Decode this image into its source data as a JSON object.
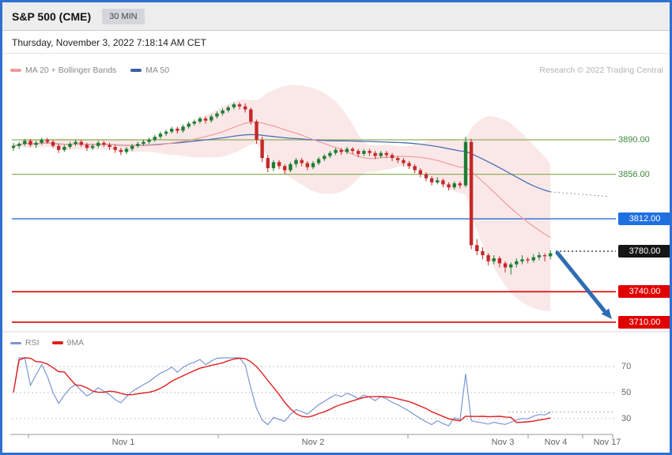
{
  "colors": {
    "frame_border": "#2e6fd0",
    "titlebar_bg": "#ededed",
    "timeframe_badge_bg": "#d3d7dc",
    "green_level": "#8faf5a",
    "green_text": "#3c8a3c",
    "blue_level": "#3a7bd5",
    "blue_badge": "#1e6fe0",
    "black_badge": "#161616",
    "red_level": "#e00000",
    "candle_up": "#1e7d32",
    "candle_down": "#c62828",
    "ma20": "#f29b9b",
    "ma50": "#4a6fb5",
    "boll_fill": "#f7d9d9",
    "rsi_line": "#7b96d4",
    "rsi_ma": "#e02020",
    "arrow": "#2e6db4",
    "credit_text": "#b3b3b3"
  },
  "header": {
    "title": "S&P 500 (CME)",
    "timeframe": "30 MIN"
  },
  "datetime_line": "Thursday, November 3, 2022 7:18:14 AM CET",
  "credit": "Research © 2022 Trading Central",
  "legend": {
    "ma20": "MA 20 + Bollinger Bands",
    "ma50": "MA 50"
  },
  "rsi_legend": {
    "rsi": "RSI",
    "ma9": "9MA"
  },
  "price_labels": [
    "3890.00",
    "3856.00",
    "3812.00",
    "3780.00",
    "3740.00",
    "3710.00"
  ],
  "x_labels": [
    "Nov 1",
    "Nov 2",
    "Nov 3",
    "Nov 4",
    "Nov 17"
  ],
  "rsi_ticks": [
    "70",
    "50",
    "30"
  ],
  "chart_data": {
    "type": "candlestick",
    "symbol": "S&P 500 (CME)",
    "interval": "30 MIN",
    "title": "S&P 500 (CME) 30 MIN intraday chart with MA20 + Bollinger Bands, MA50, RSI and 9MA, pivot/support/resistance levels",
    "ylim": [
      3700,
      3940
    ],
    "x_categories": [
      "Nov 1",
      "Nov 2",
      "Nov 3",
      "Nov 4",
      "Nov 17"
    ],
    "levels": [
      {
        "price": 3890,
        "style": "green",
        "label": "3890.00"
      },
      {
        "price": 3856,
        "style": "green",
        "label": "3856.00"
      },
      {
        "price": 3812,
        "style": "blue",
        "label": "3812.00"
      },
      {
        "price": 3780,
        "style": "black-dotted",
        "label": "3780.00"
      },
      {
        "price": 3740,
        "style": "red",
        "label": "3740.00"
      },
      {
        "price": 3710,
        "style": "red",
        "label": "3710.00"
      }
    ],
    "arrow_projection": {
      "from_price": 3780,
      "to_price": 3710,
      "direction": "down"
    },
    "rsi_gridlines": [
      70,
      50,
      30
    ],
    "indicators": [
      "MA 20 + Bollinger Bands",
      "MA 50",
      "RSI",
      "9MA"
    ],
    "candles": [
      [
        3882,
        3887,
        3879,
        3884
      ],
      [
        3884,
        3888,
        3881,
        3886
      ],
      [
        3886,
        3891,
        3884,
        3889
      ],
      [
        3889,
        3891,
        3883,
        3885
      ],
      [
        3885,
        3889,
        3882,
        3887
      ],
      [
        3887,
        3892,
        3885,
        3890
      ],
      [
        3890,
        3892,
        3886,
        3888
      ],
      [
        3888,
        3890,
        3882,
        3884
      ],
      [
        3884,
        3886,
        3877,
        3880
      ],
      [
        3880,
        3885,
        3878,
        3883
      ],
      [
        3883,
        3888,
        3881,
        3886
      ],
      [
        3886,
        3890,
        3884,
        3888
      ],
      [
        3888,
        3890,
        3883,
        3885
      ],
      [
        3885,
        3887,
        3879,
        3882
      ],
      [
        3882,
        3886,
        3880,
        3884
      ],
      [
        3884,
        3889,
        3882,
        3887
      ],
      [
        3887,
        3889,
        3883,
        3885
      ],
      [
        3885,
        3887,
        3880,
        3883
      ],
      [
        3883,
        3885,
        3877,
        3880
      ],
      [
        3880,
        3882,
        3875,
        3878
      ],
      [
        3878,
        3883,
        3876,
        3881
      ],
      [
        3881,
        3886,
        3879,
        3884
      ],
      [
        3884,
        3888,
        3882,
        3886
      ],
      [
        3886,
        3890,
        3884,
        3888
      ],
      [
        3888,
        3892,
        3886,
        3890
      ],
      [
        3890,
        3895,
        3888,
        3893
      ],
      [
        3893,
        3898,
        3891,
        3896
      ],
      [
        3896,
        3900,
        3894,
        3898
      ],
      [
        3898,
        3903,
        3896,
        3901
      ],
      [
        3901,
        3903,
        3896,
        3899
      ],
      [
        3899,
        3905,
        3897,
        3903
      ],
      [
        3903,
        3908,
        3901,
        3906
      ],
      [
        3906,
        3910,
        3904,
        3908
      ],
      [
        3908,
        3913,
        3906,
        3911
      ],
      [
        3911,
        3913,
        3906,
        3909
      ],
      [
        3909,
        3915,
        3907,
        3913
      ],
      [
        3913,
        3918,
        3911,
        3916
      ],
      [
        3916,
        3921,
        3914,
        3919
      ],
      [
        3919,
        3924,
        3917,
        3922
      ],
      [
        3922,
        3927,
        3920,
        3925
      ],
      [
        3925,
        3927,
        3920,
        3923
      ],
      [
        3923,
        3926,
        3917,
        3920
      ],
      [
        3920,
        3922,
        3905,
        3908
      ],
      [
        3908,
        3910,
        3886,
        3890
      ],
      [
        3890,
        3893,
        3868,
        3872
      ],
      [
        3872,
        3875,
        3858,
        3862
      ],
      [
        3862,
        3870,
        3859,
        3868
      ],
      [
        3868,
        3870,
        3861,
        3864
      ],
      [
        3864,
        3866,
        3856,
        3860
      ],
      [
        3860,
        3868,
        3858,
        3866
      ],
      [
        3866,
        3872,
        3863,
        3870
      ],
      [
        3870,
        3872,
        3864,
        3867
      ],
      [
        3867,
        3869,
        3860,
        3863
      ],
      [
        3863,
        3869,
        3861,
        3867
      ],
      [
        3867,
        3873,
        3865,
        3871
      ],
      [
        3871,
        3876,
        3869,
        3874
      ],
      [
        3874,
        3879,
        3872,
        3877
      ],
      [
        3877,
        3882,
        3875,
        3880
      ],
      [
        3880,
        3882,
        3875,
        3878
      ],
      [
        3878,
        3883,
        3876,
        3881
      ],
      [
        3881,
        3883,
        3876,
        3879
      ],
      [
        3879,
        3881,
        3873,
        3876
      ],
      [
        3876,
        3881,
        3874,
        3879
      ],
      [
        3879,
        3881,
        3874,
        3877
      ],
      [
        3877,
        3879,
        3871,
        3874
      ],
      [
        3874,
        3879,
        3872,
        3877
      ],
      [
        3877,
        3879,
        3872,
        3875
      ],
      [
        3875,
        3877,
        3869,
        3872
      ],
      [
        3872,
        3874,
        3867,
        3870
      ],
      [
        3870,
        3872,
        3864,
        3867
      ],
      [
        3867,
        3869,
        3861,
        3864
      ],
      [
        3864,
        3866,
        3857,
        3860
      ],
      [
        3860,
        3862,
        3853,
        3856
      ],
      [
        3856,
        3858,
        3849,
        3852
      ],
      [
        3852,
        3854,
        3845,
        3848
      ],
      [
        3848,
        3853,
        3846,
        3850
      ],
      [
        3850,
        3852,
        3843,
        3846
      ],
      [
        3846,
        3848,
        3840,
        3843
      ],
      [
        3843,
        3849,
        3841,
        3847
      ],
      [
        3847,
        3849,
        3842,
        3845
      ],
      [
        3845,
        3893,
        3843,
        3888
      ],
      [
        3888,
        3891,
        3782,
        3786
      ],
      [
        3786,
        3792,
        3776,
        3780
      ],
      [
        3780,
        3784,
        3772,
        3776
      ],
      [
        3776,
        3778,
        3766,
        3770
      ],
      [
        3770,
        3776,
        3767,
        3773
      ],
      [
        3773,
        3775,
        3764,
        3768
      ],
      [
        3768,
        3770,
        3759,
        3764
      ],
      [
        3764,
        3769,
        3757,
        3767
      ],
      [
        3767,
        3773,
        3764,
        3770
      ],
      [
        3770,
        3776,
        3767,
        3772
      ],
      [
        3772,
        3774,
        3768,
        3771
      ],
      [
        3771,
        3777,
        3769,
        3774
      ],
      [
        3774,
        3779,
        3771,
        3776
      ],
      [
        3776,
        3778,
        3770,
        3775
      ],
      [
        3775,
        3781,
        3772,
        3778
      ]
    ]
  }
}
